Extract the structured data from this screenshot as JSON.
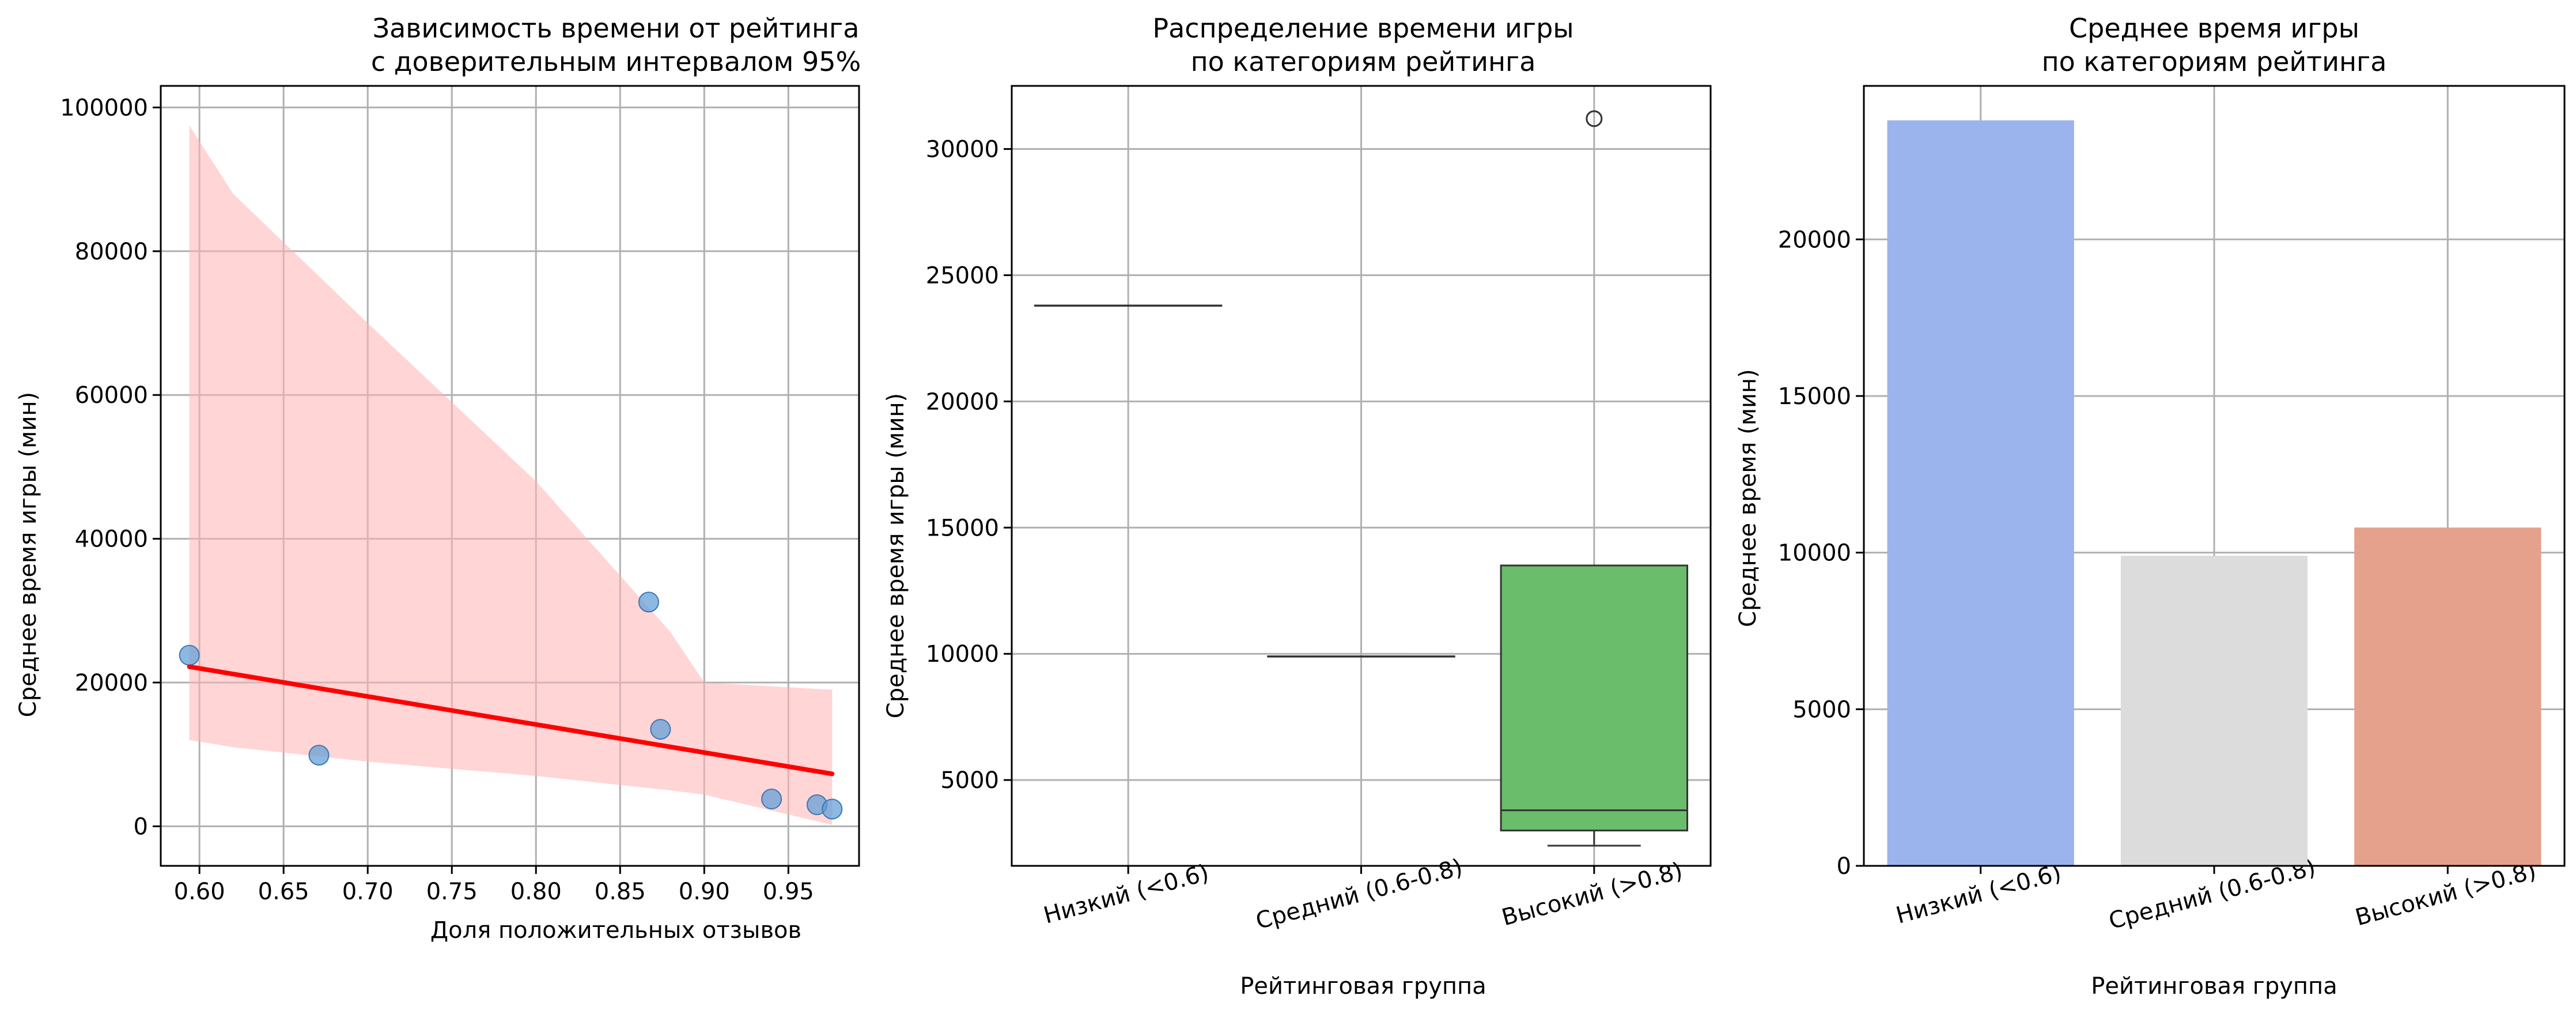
{
  "chart_data": [
    {
      "type": "scatter",
      "title_lines": [
        "Зависимость времени от рейтинга",
        "с доверительным интервалом 95%"
      ],
      "xlabel": "Доля положительных отзывов",
      "ylabel": "Среднее время игры (мин)",
      "xlim": [
        0.577,
        0.992
      ],
      "ylim": [
        -5500,
        103000
      ],
      "x_ticks": [
        0.6,
        0.65,
        0.7,
        0.75,
        0.8,
        0.85,
        0.9,
        0.95
      ],
      "x_tick_labels": [
        "0.60",
        "0.65",
        "0.70",
        "0.75",
        "0.80",
        "0.85",
        "0.90",
        "0.95"
      ],
      "y_ticks": [
        0,
        20000,
        40000,
        60000,
        80000,
        100000
      ],
      "y_tick_labels": [
        "0",
        "20000",
        "40000",
        "60000",
        "80000",
        "100000"
      ],
      "grid": true,
      "points": {
        "color": "#5b9bd5",
        "x": [
          0.594,
          0.671,
          0.867,
          0.874,
          0.94,
          0.967,
          0.976
        ],
        "y": [
          23800,
          9900,
          31200,
          13500,
          3800,
          3000,
          2400
        ]
      },
      "regression": {
        "color": "#ff0000",
        "x": [
          0.594,
          0.976
        ],
        "y": [
          22200,
          7300
        ]
      },
      "confidence_band": {
        "color": "#ffb3b3",
        "x": [
          0.594,
          0.62,
          0.7,
          0.8,
          0.88,
          0.9,
          0.976
        ],
        "upper": [
          97500,
          88000,
          70000,
          48000,
          27000,
          20000,
          19000
        ],
        "lower": [
          12000,
          11000,
          9000,
          7000,
          5000,
          4400,
          200
        ]
      }
    },
    {
      "type": "box",
      "title_lines": [
        "Распределение времени игры",
        "по категориям рейтинга"
      ],
      "xlabel": "Рейтинговая группа",
      "ylabel": "Среднее время игры (мин)",
      "ylim": [
        1600,
        32500
      ],
      "y_ticks": [
        5000,
        10000,
        15000,
        20000,
        25000,
        30000
      ],
      "y_tick_labels": [
        "5000",
        "10000",
        "15000",
        "20000",
        "25000",
        "30000"
      ],
      "grid": true,
      "categories": [
        "Низкий (<0.6)",
        "Средний (0.6-0.8)",
        "Высокий (>0.8)"
      ],
      "boxes": [
        {
          "min": 23800,
          "q1": 23800,
          "median": 23800,
          "q3": 23800,
          "max": 23800,
          "outliers": [],
          "color": "#4c72b0"
        },
        {
          "min": 9900,
          "q1": 9900,
          "median": 9900,
          "q3": 9900,
          "max": 9900,
          "outliers": [],
          "color": "#dd8452"
        },
        {
          "min": 2400,
          "q1": 3000,
          "median": 3800,
          "q3": 13500,
          "max": 13500,
          "outliers": [
            31200
          ],
          "color": "#6abd6a"
        }
      ]
    },
    {
      "type": "bar",
      "title_lines": [
        "Среднее время игры",
        "по категориям рейтинга"
      ],
      "xlabel": "Рейтинговая группа",
      "ylabel": "Среднее время (мин)",
      "ylim": [
        0,
        24900
      ],
      "y_ticks": [
        0,
        5000,
        10000,
        15000,
        20000
      ],
      "y_tick_labels": [
        "0",
        "5000",
        "10000",
        "15000",
        "20000"
      ],
      "grid": true,
      "categories": [
        "Низкий (<0.6)",
        "Средний (0.6-0.8)",
        "Высокий (>0.8)"
      ],
      "values": [
        23800,
        9900,
        10800
      ],
      "colors": [
        "#9bb4ee",
        "#dcdcdc",
        "#e5a18b"
      ]
    }
  ]
}
